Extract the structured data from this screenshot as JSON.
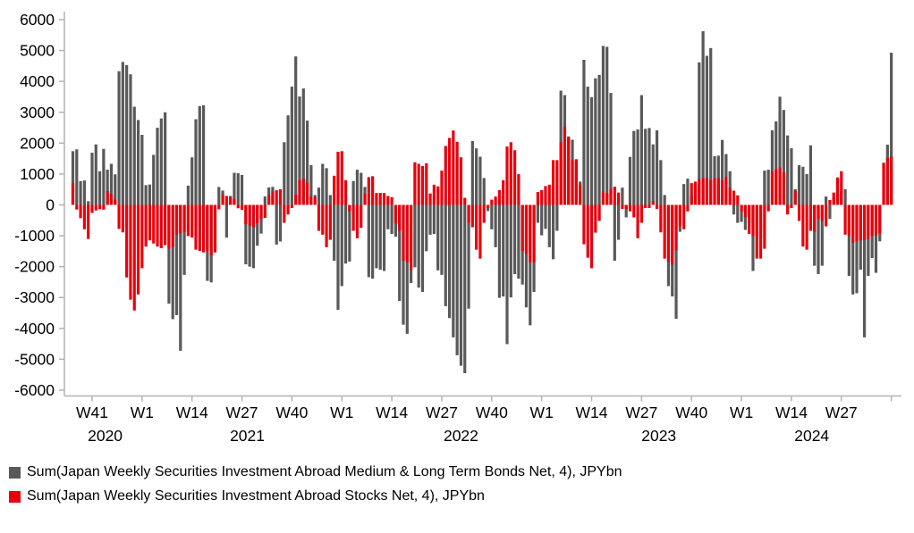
{
  "chart_data": {
    "type": "bar",
    "title": "",
    "unit": "JPYbn",
    "ylim": [
      -6000,
      6000
    ],
    "y_tick_step": 1000,
    "y_tick_labels": [
      "6000",
      "5000",
      "4000",
      "3000",
      "2000",
      "1000",
      "0",
      "-1000",
      "-2000",
      "-3000",
      "-4000",
      "-5000",
      "-6000"
    ],
    "x_ticks": [
      {
        "label": "W41",
        "index": 5
      },
      {
        "label": "W1",
        "index": 18
      },
      {
        "label": "W14",
        "index": 31
      },
      {
        "label": "W27",
        "index": 44
      },
      {
        "label": "W40",
        "index": 57
      },
      {
        "label": "W1",
        "index": 70
      },
      {
        "label": "W14",
        "index": 83
      },
      {
        "label": "W27",
        "index": 96
      },
      {
        "label": "W40",
        "index": 109
      },
      {
        "label": "W1",
        "index": 122
      },
      {
        "label": "W14",
        "index": 135
      },
      {
        "label": "W27",
        "index": 148
      },
      {
        "label": "W40",
        "index": 161
      },
      {
        "label": "W1",
        "index": 174
      },
      {
        "label": "W14",
        "index": 187
      },
      {
        "label": "W27",
        "index": 200
      },
      {
        "label": "",
        "index": 213
      }
    ],
    "year_labels": [
      {
        "text": "2020",
        "index": 8.4
      },
      {
        "text": "2021",
        "index": 45.4
      },
      {
        "text": "2022",
        "index": 101.0
      },
      {
        "text": "2023",
        "index": 152.5
      },
      {
        "text": "2024",
        "index": 192.3
      }
    ],
    "start_week": "2020-W36",
    "legend_position": "bottom-left",
    "grid": false,
    "series": [
      {
        "name": "Sum(Japan Weekly Securities Investment Abroad Medium & Long Term Bonds Net, 4), JPYbn",
        "color": "#595959",
        "values": [
          1740,
          1800,
          770,
          790,
          120,
          1690,
          1960,
          1090,
          1815,
          1140,
          1330,
          990,
          4330,
          4630,
          4530,
          4230,
          3180,
          2750,
          2270,
          640,
          660,
          1620,
          2500,
          2800,
          3000,
          -3200,
          -3700,
          -3570,
          -4725,
          -2265,
          625,
          1540,
          2775,
          3200,
          3230,
          -2460,
          -2510,
          -1400,
          580,
          465,
          -1060,
          290,
          1040,
          1025,
          970,
          -1925,
          -2000,
          -2050,
          -1320,
          -930,
          275,
          565,
          585,
          -1285,
          -1185,
          2030,
          2900,
          3830,
          4810,
          3510,
          3770,
          2730,
          1290,
          320,
          560,
          1330,
          1190,
          320,
          -1810,
          -3400,
          -2630,
          -1900,
          -1835,
          775,
          1140,
          1040,
          580,
          -2340,
          -2390,
          -2050,
          -2100,
          -2140,
          -790,
          -940,
          -1030,
          -3110,
          -3880,
          -4175,
          -2530,
          -2020,
          -2680,
          -2820,
          -1500,
          -965,
          -945,
          -2120,
          -2265,
          -3280,
          -3665,
          -4290,
          -4870,
          -5210,
          -5450,
          -3360,
          2070,
          1830,
          1560,
          870,
          -200,
          -790,
          -1370,
          -3010,
          -2965,
          -4510,
          -2995,
          -2240,
          -2390,
          -2580,
          -3320,
          -3900,
          -2820,
          -580,
          -985,
          -775,
          -1370,
          -1760,
          -840,
          3700,
          3555,
          2220,
          2110,
          1410,
          755,
          4700,
          3830,
          3490,
          4100,
          4210,
          5150,
          5120,
          3625,
          -1810,
          -1130,
          560,
          -405,
          1555,
          2395,
          2445,
          3555,
          2465,
          2490,
          1960,
          2415,
          1450,
          320,
          -2630,
          -2965,
          -3690,
          -870,
          675,
          850,
          300,
          660,
          4615,
          5625,
          4830,
          5080,
          1575,
          1595,
          2105,
          1645,
          1090,
          -310,
          -580,
          -550,
          -810,
          -600,
          -2140,
          -1010,
          -1100,
          1110,
          1140,
          2415,
          2705,
          3505,
          3075,
          2250,
          1835,
          510,
          1285,
          1235,
          1000,
          1930,
          -1970,
          -2240,
          -1970,
          270,
          -455,
          220,
          850,
          445,
          510,
          -2300,
          -2900,
          -2860,
          -2100,
          -4290,
          -2300,
          -1720,
          -2200,
          -1180,
          1370,
          1950,
          4930
        ]
      },
      {
        "name": "Sum(Japan Weekly Securities Investment Abroad Stocks Net, 4), JPYbn",
        "color": "#e8000d",
        "values": [
          710,
          -150,
          -430,
          -790,
          -1105,
          -260,
          -180,
          -140,
          -155,
          450,
          350,
          170,
          -780,
          -890,
          -2350,
          -3070,
          -3420,
          -2900,
          -2050,
          -1350,
          -1150,
          -1250,
          -1350,
          -1400,
          -1300,
          -1420,
          -1370,
          -965,
          -915,
          -870,
          -1010,
          -1060,
          -1450,
          -1490,
          -1540,
          -1500,
          -1640,
          -1540,
          -145,
          340,
          290,
          250,
          195,
          -110,
          -160,
          -625,
          -680,
          -725,
          -590,
          -450,
          -420,
          325,
          440,
          475,
          505,
          -580,
          -310,
          -100,
          330,
          805,
          855,
          705,
          270,
          250,
          -840,
          -965,
          -1370,
          -1130,
          945,
          1720,
          1740,
          800,
          -210,
          -840,
          -1080,
          -745,
          370,
          900,
          930,
          385,
          390,
          385,
          290,
          250,
          -600,
          -840,
          -1810,
          -1855,
          -2100,
          1380,
          1330,
          1260,
          1350,
          370,
          655,
          600,
          1110,
          1910,
          2170,
          2410,
          2045,
          1540,
          230,
          -580,
          -725,
          -1450,
          -1740,
          -580,
          -100,
          170,
          270,
          480,
          800,
          1890,
          2030,
          1770,
          995,
          -1490,
          -1590,
          -1860,
          -1860,
          420,
          480,
          610,
          655,
          1450,
          1450,
          2030,
          2540,
          2180,
          1450,
          1480,
          655,
          -1275,
          -1710,
          -2050,
          -900,
          -520,
          430,
          380,
          520,
          590,
          400,
          -135,
          -135,
          -210,
          -405,
          -1080,
          -580,
          -100,
          -100,
          125,
          -135,
          -890,
          -1740,
          -1835,
          -1930,
          -1470,
          -695,
          -790,
          -210,
          705,
          755,
          830,
          870,
          870,
          795,
          870,
          870,
          795,
          915,
          550,
          460,
          310,
          -210,
          -400,
          -940,
          -1010,
          -1740,
          -1740,
          -1420,
          -210,
          1090,
          1160,
          1210,
          1050,
          -310,
          -100,
          460,
          -520,
          -1350,
          -1450,
          -840,
          -870,
          -455,
          -520,
          -695,
          160,
          400,
          890,
          1090,
          -965,
          -1005,
          -1230,
          -1180,
          -1150,
          -1140,
          -1100,
          -1010,
          -985,
          -930,
          1335,
          1520,
          1565
        ]
      }
    ]
  },
  "legend": {
    "items": [
      {
        "label": "Sum(Japan Weekly Securities Investment Abroad Medium & Long Term Bonds Net, 4), JPYbn"
      },
      {
        "label": "Sum(Japan Weekly Securities Investment Abroad Stocks Net, 4), JPYbn"
      }
    ]
  },
  "axis_colors": {
    "line": "#b3b3b3",
    "tick_text": "#000000"
  }
}
